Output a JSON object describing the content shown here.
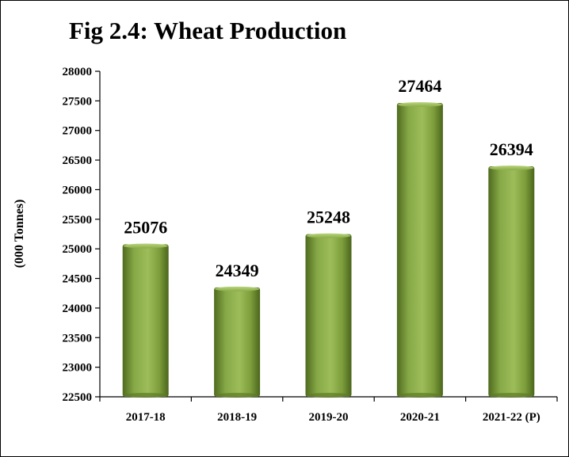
{
  "chart_data": {
    "type": "bar",
    "title": "Fig 2.4: Wheat Production",
    "ylabel": "(000 Tonnes)",
    "xlabel": "",
    "categories": [
      "2017-18",
      "2018-19",
      "2019-20",
      "2020-21",
      "2021-22 (P)"
    ],
    "values": [
      25076,
      24349,
      25248,
      27464,
      26394
    ],
    "ylim": [
      22500,
      28000
    ],
    "yticks": [
      22500,
      23000,
      23500,
      24000,
      24500,
      25000,
      25500,
      26000,
      26500,
      27000,
      27500,
      28000
    ],
    "data_labels": [
      "25076",
      "24349",
      "25248",
      "27464",
      "26394"
    ],
    "grid": false,
    "legend": "none",
    "bar_color": "#7a9a3c"
  }
}
